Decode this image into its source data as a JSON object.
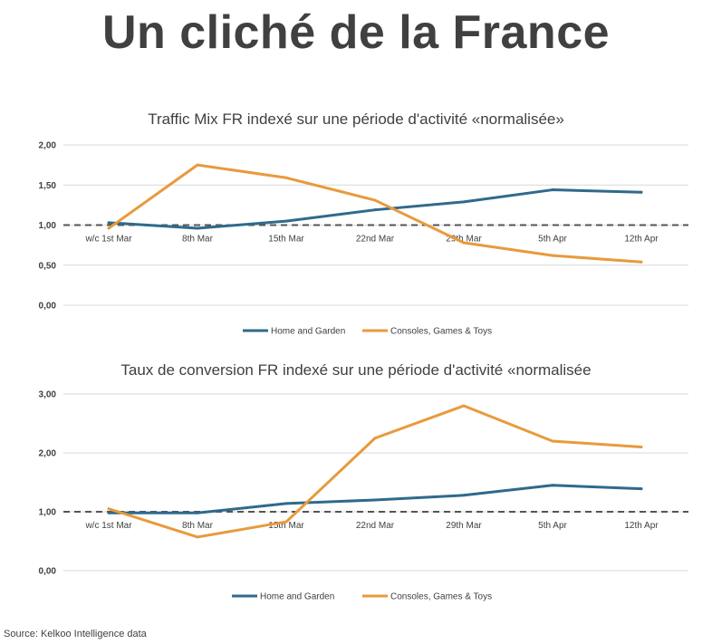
{
  "page": {
    "title": "Un cliché de la France",
    "source": "Source: Kelkoo Intelligence data"
  },
  "colors": {
    "home": "#2f6a8c",
    "consoles": "#e89a3c",
    "text": "#404040",
    "grid": "#d9d9d9",
    "reference": "#555555"
  },
  "chart_data": [
    {
      "type": "line",
      "title": "Traffic Mix FR indexé sur une période d'activité «normalisée»",
      "categories": [
        "w/c 1st Mar",
        "8th Mar",
        "15th Mar",
        "22nd Mar",
        "29th Mar",
        "5th Apr",
        "12th Apr"
      ],
      "ylim": [
        0,
        2
      ],
      "yticks": [
        "0,00",
        "0,50",
        "1,00",
        "1,50",
        "2,00"
      ],
      "reference_line": 1,
      "grid": true,
      "legend_position": "bottom",
      "series": [
        {
          "name": "Home and Garden",
          "values": [
            1.03,
            0.96,
            1.05,
            1.19,
            1.29,
            1.44,
            1.41
          ]
        },
        {
          "name": "Consoles, Games & Toys",
          "values": [
            0.96,
            1.75,
            1.59,
            1.31,
            0.78,
            0.62,
            0.54
          ]
        }
      ]
    },
    {
      "type": "line",
      "title": "Taux de conversion FR indexé sur une période d'activité «normalisée",
      "categories": [
        "w/c 1st Mar",
        "8th Mar",
        "15th Mar",
        "22nd Mar",
        "29th Mar",
        "5th Apr",
        "12th Apr"
      ],
      "ylim": [
        0,
        3
      ],
      "yticks": [
        "0,00",
        "1,00",
        "2,00",
        "3,00"
      ],
      "reference_line": 1,
      "grid": true,
      "legend_position": "bottom",
      "series": [
        {
          "name": "Home and Garden",
          "values": [
            0.98,
            0.98,
            1.14,
            1.2,
            1.28,
            1.45,
            1.39
          ]
        },
        {
          "name": "Consoles, Games & Toys",
          "values": [
            1.05,
            0.57,
            0.83,
            2.25,
            2.8,
            2.2,
            2.1
          ]
        }
      ]
    }
  ]
}
